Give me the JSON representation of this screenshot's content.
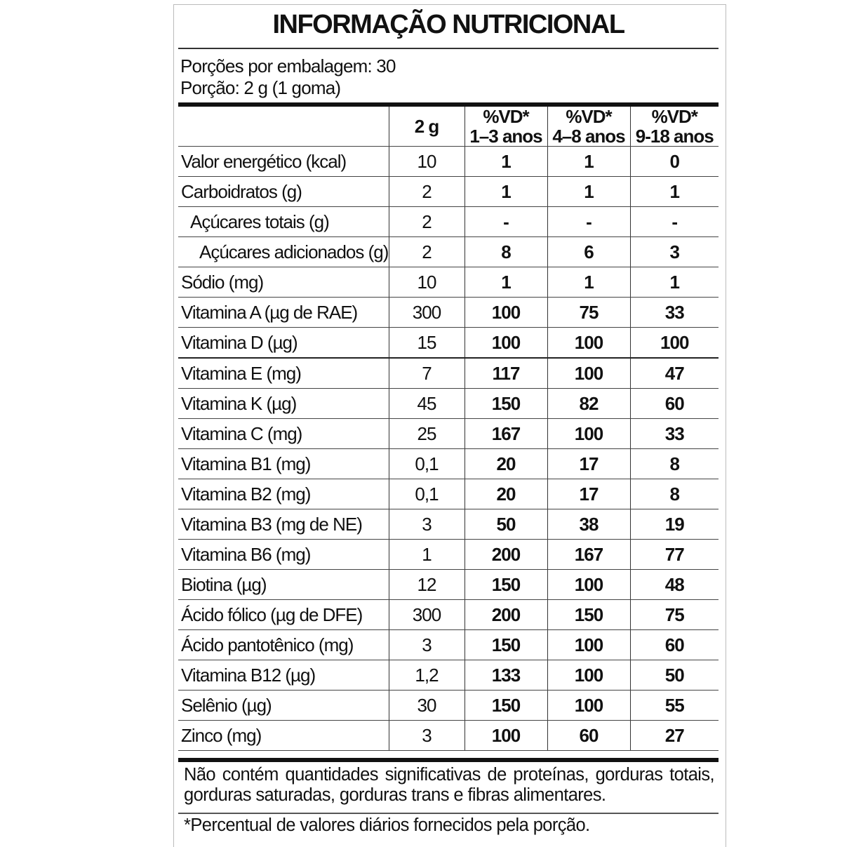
{
  "title": "INFORMAÇÃO NUTRICIONAL",
  "servings_per_package": "Porções por embalagem: 30",
  "serving_size": "Porção: 2 g (1 goma)",
  "headers": {
    "blank": "",
    "amount": "2 g",
    "vd1_line1": "%VD*",
    "vd1_line2": "1–3 anos",
    "vd2_line1": "%VD*",
    "vd2_line2": "4–8 anos",
    "vd3_line1": "%VD*",
    "vd3_line2": "9-18 anos"
  },
  "rows": [
    {
      "name": "Valor energético (kcal)",
      "amount": "10",
      "vd1": "1",
      "vd2": "1",
      "vd3": "0",
      "indent": 0
    },
    {
      "name": "Carboidratos (g)",
      "amount": "2",
      "vd1": "1",
      "vd2": "1",
      "vd3": "1",
      "indent": 0
    },
    {
      "name": "Açúcares totais (g)",
      "amount": "2",
      "vd1": "-",
      "vd2": "-",
      "vd3": "-",
      "indent": 1
    },
    {
      "name": "Açúcares adicionados (g)",
      "amount": "2",
      "vd1": "8",
      "vd2": "6",
      "vd3": "3",
      "indent": 2
    },
    {
      "name": "Sódio (mg)",
      "amount": "10",
      "vd1": "1",
      "vd2": "1",
      "vd3": "1",
      "indent": 0
    },
    {
      "name": "Vitamina A (µg de RAE)",
      "amount": "300",
      "vd1": "100",
      "vd2": "75",
      "vd3": "33",
      "indent": 0
    },
    {
      "name": "Vitamina D (µg)",
      "amount": "15",
      "vd1": "100",
      "vd2": "100",
      "vd3": "100",
      "indent": 0
    },
    {
      "name": "Vitamina E (mg)",
      "amount": "7",
      "vd1": "117",
      "vd2": "100",
      "vd3": "47",
      "indent": 0
    },
    {
      "name": "Vitamina K (µg)",
      "amount": "45",
      "vd1": "150",
      "vd2": "82",
      "vd3": "60",
      "indent": 0
    },
    {
      "name": "Vitamina C (mg)",
      "amount": "25",
      "vd1": "167",
      "vd2": "100",
      "vd3": "33",
      "indent": 0
    },
    {
      "name": "Vitamina B1 (mg)",
      "amount": "0,1",
      "vd1": "20",
      "vd2": "17",
      "vd3": "8",
      "indent": 0
    },
    {
      "name": "Vitamina B2 (mg)",
      "amount": "0,1",
      "vd1": "20",
      "vd2": "17",
      "vd3": "8",
      "indent": 0
    },
    {
      "name": "Vitamina B3 (mg de NE)",
      "amount": "3",
      "vd1": "50",
      "vd2": "38",
      "vd3": "19",
      "indent": 0
    },
    {
      "name": "Vitamina B6 (mg)",
      "amount": "1",
      "vd1": "200",
      "vd2": "167",
      "vd3": "77",
      "indent": 0
    },
    {
      "name": "Biotina (µg)",
      "amount": "12",
      "vd1": "150",
      "vd2": "100",
      "vd3": "48",
      "indent": 0
    },
    {
      "name": "Ácido fólico (µg de DFE)",
      "amount": "300",
      "vd1": "200",
      "vd2": "150",
      "vd3": "75",
      "indent": 0
    },
    {
      "name": "Ácido pantotênico (mg)",
      "amount": "3",
      "vd1": "150",
      "vd2": "100",
      "vd3": "60",
      "indent": 0
    },
    {
      "name": "Vitamina B12 (µg)",
      "amount": "1,2",
      "vd1": "133",
      "vd2": "100",
      "vd3": "50",
      "indent": 0
    },
    {
      "name": "Selênio (µg)",
      "amount": "30",
      "vd1": "150",
      "vd2": "100",
      "vd3": "55",
      "indent": 0
    },
    {
      "name": "Zinco (mg)",
      "amount": "3",
      "vd1": "100",
      "vd2": "60",
      "vd3": "27",
      "indent": 0
    }
  ],
  "note": "Não contém quantidades significativas de proteínas, gorduras totais, gorduras saturadas, gorduras trans e fibras alimentares.",
  "footnote": "*Percentual de valores diários fornecidos pela porção."
}
